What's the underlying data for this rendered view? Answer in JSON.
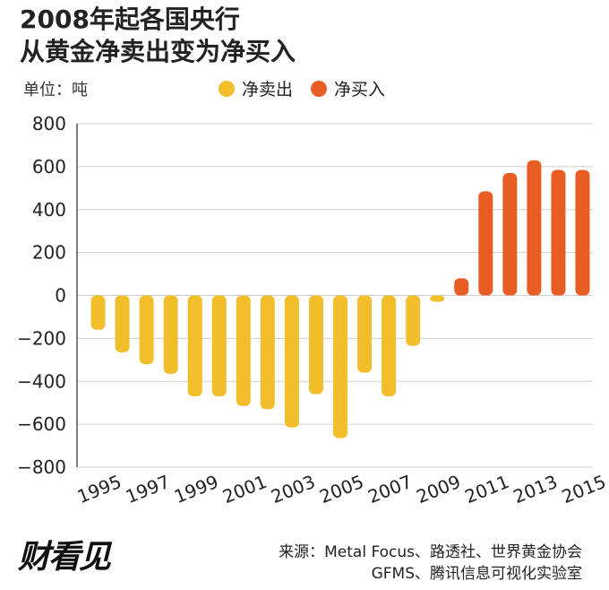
{
  "title": {
    "line1": "2008年起各国央行",
    "line2": "从黄金净卖出变为净买入"
  },
  "unit_label": "单位：吨",
  "legend": [
    {
      "label": "净卖出",
      "color": "#f2be2c"
    },
    {
      "label": "净买入",
      "color": "#e85d23"
    }
  ],
  "source": {
    "line1": "来源：Metal Focus、路透社、世界黄金协会",
    "line2": "GFMS、腾讯信息可视化实验室"
  },
  "logo_text": "财看见",
  "chart_data": {
    "type": "bar",
    "title": "2008年起各国央行从黄金净卖出变为净买入",
    "ylabel": "单位：吨",
    "xlabel": "",
    "ylim": [
      -800,
      800
    ],
    "yticks": [
      800,
      600,
      400,
      200,
      0,
      -200,
      -400,
      -600,
      -800
    ],
    "ytick_labels": [
      "800",
      "600",
      "400",
      "200",
      "0",
      "−200",
      "−400",
      "−600",
      "−800"
    ],
    "xtick_labels": [
      "1995",
      "1997",
      "1999",
      "2001",
      "2003",
      "2005",
      "2007",
      "2009",
      "2011",
      "2013",
      "2015"
    ],
    "categories": [
      "1995",
      "1996",
      "1997",
      "1998",
      "1999",
      "2000",
      "2001",
      "2002",
      "2003",
      "2004",
      "2005",
      "2006",
      "2007",
      "2008",
      "2009",
      "2010",
      "2011",
      "2012",
      "2013",
      "2014",
      "2015"
    ],
    "values": [
      -160,
      -265,
      -320,
      -365,
      -470,
      -470,
      -515,
      -530,
      -615,
      -460,
      -665,
      -360,
      -470,
      -235,
      -30,
      80,
      485,
      570,
      630,
      585,
      585
    ],
    "colors": {
      "negative": "#f2be2c",
      "positive": "#e85d23"
    },
    "grid": true,
    "legend_position": "top"
  }
}
